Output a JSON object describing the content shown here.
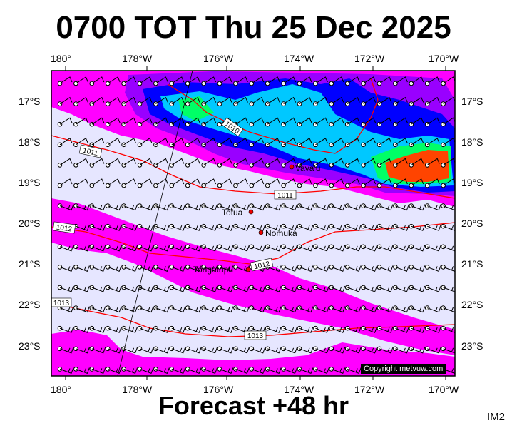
{
  "title": "0700 TOT Thu 25 Dec 2025",
  "subtitle": "Forecast +48 hr",
  "model": "IM2",
  "copyright": "Copyright metvuw.com",
  "lon_labels": [
    "180°",
    "178°W",
    "176°W",
    "174°W",
    "172°W",
    "170°W"
  ],
  "lat_labels": [
    "17°S",
    "18°S",
    "19°S",
    "20°S",
    "21°S",
    "22°S",
    "23°S"
  ],
  "places": [
    {
      "name": "Vava'u",
      "label": "Vava'u"
    },
    {
      "name": "Tofua",
      "label": "Tofua"
    },
    {
      "name": "Nomuka",
      "label": "Nomuka"
    },
    {
      "name": "Tongatapu",
      "label": "Tongatapu"
    }
  ],
  "isobars": [
    "1010",
    "1011",
    "1011",
    "1012",
    "1012",
    "1013",
    "1013"
  ],
  "colors": {
    "background": "#e6e6ff",
    "rain_light": "#ff00ff",
    "rain_moderate": "#9900ff",
    "rain_heavy": "#0000ff",
    "rain_heavier": "#00c8ff",
    "rain_intense": "#00ff66",
    "rain_very_intense": "#ff4400",
    "isobar": "#ff0000"
  },
  "map": {
    "lon_min": -180.3,
    "lon_max": -169.8,
    "lat_min": -23.55,
    "lat_max": -16.55
  }
}
